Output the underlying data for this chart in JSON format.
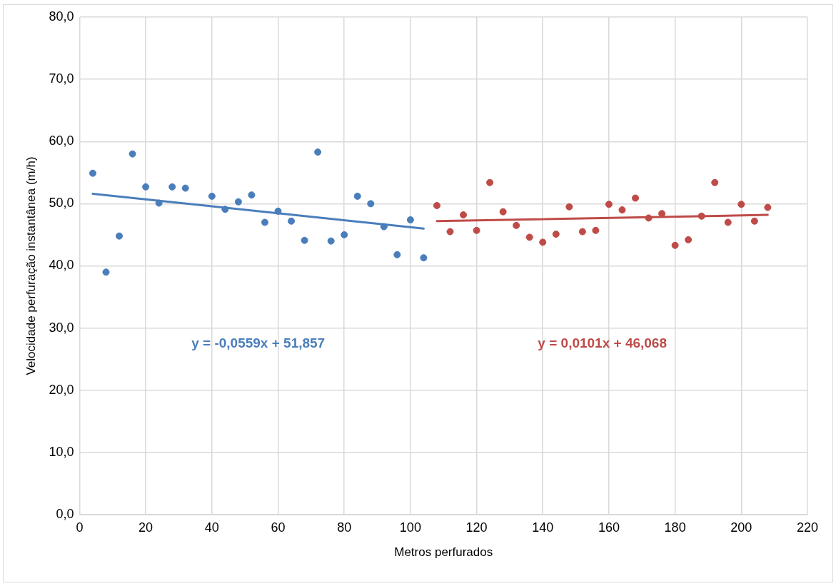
{
  "chart_data": {
    "type": "scatter",
    "xlabel": "Metros perfurados",
    "ylabel": "Velocidade perfuração instantânea (m/h)",
    "xlim": [
      0,
      220
    ],
    "xticks": [
      0,
      20,
      40,
      60,
      80,
      100,
      120,
      140,
      160,
      180,
      200,
      220
    ],
    "ylim": [
      0,
      80
    ],
    "yticks": [
      {
        "value": 0,
        "label": "0,0"
      },
      {
        "value": 10,
        "label": "10,0"
      },
      {
        "value": 20,
        "label": "20,0"
      },
      {
        "value": 30,
        "label": "30,0"
      },
      {
        "value": 40,
        "label": "40,0"
      },
      {
        "value": 50,
        "label": "50,0"
      },
      {
        "value": 60,
        "label": "60,0"
      },
      {
        "value": 70,
        "label": "70,0"
      },
      {
        "value": 80,
        "label": "80,0"
      }
    ],
    "grid": true,
    "legend": false,
    "marker": "circle",
    "series": [
      {
        "color": "#4a7ebb",
        "x": [
          4,
          8,
          12,
          16,
          20,
          24,
          28,
          32,
          40,
          44,
          48,
          52,
          56,
          60,
          64,
          68,
          72,
          76,
          80,
          84,
          88,
          92,
          96,
          100,
          104
        ],
        "values": [
          54.9,
          39.0,
          44.8,
          58.0,
          52.7,
          50.1,
          52.7,
          52.5,
          51.2,
          49.1,
          50.3,
          51.4,
          47.0,
          48.8,
          47.2,
          44.1,
          58.3,
          44.0,
          45.0,
          51.2,
          50.0,
          46.3,
          41.8,
          47.4,
          41.3
        ]
      },
      {
        "color": "#be4b48",
        "x": [
          108,
          112,
          116,
          120,
          124,
          128,
          132,
          136,
          140,
          144,
          148,
          152,
          156,
          160,
          164,
          168,
          172,
          176,
          180,
          184,
          188,
          192,
          196,
          200,
          204,
          208
        ],
        "values": [
          49.7,
          45.5,
          48.2,
          45.7,
          53.4,
          48.7,
          46.5,
          44.6,
          43.8,
          45.1,
          49.5,
          45.5,
          45.7,
          49.9,
          49.0,
          50.9,
          47.7,
          48.4,
          43.3,
          44.2,
          48.0,
          53.4,
          47.0,
          49.9,
          47.2,
          49.4
        ]
      },
      {
        "type": "line",
        "color": "#4a7ebb",
        "marker": "none",
        "x": [
          4,
          104
        ],
        "values": [
          51.6,
          46.0
        ]
      },
      {
        "type": "line",
        "color": "#be4b48",
        "marker": "none",
        "x": [
          108,
          208
        ],
        "values": [
          47.2,
          48.2
        ]
      }
    ],
    "annotations": [
      "y = -0,0559x + 51,857",
      "y = 0,0101x + 46,068"
    ]
  }
}
